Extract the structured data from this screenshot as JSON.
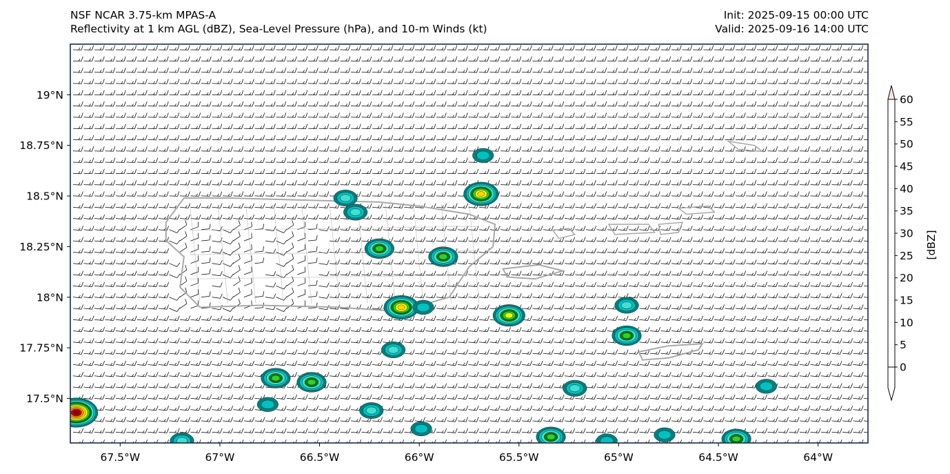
{
  "header": {
    "title_line1": "NSF NCAR 3.75-km MPAS-A",
    "title_line2": "Reflectivity at 1 km AGL (dBZ), Sea-Level Pressure (hPa), and 10-m Winds (kt)",
    "init": "Init: 2025-09-15 00:00 UTC",
    "valid": "Valid: 2025-09-16 14:00 UTC"
  },
  "map": {
    "lon_range": [
      -67.75,
      -63.75
    ],
    "lat_range": [
      17.28,
      19.25
    ],
    "lat_ticks": [
      {
        "value": 19.0,
        "label": "19°N"
      },
      {
        "value": 18.75,
        "label": "18.75°N"
      },
      {
        "value": 18.5,
        "label": "18.5°N"
      },
      {
        "value": 18.25,
        "label": "18.25°N"
      },
      {
        "value": 18.0,
        "label": "18°N"
      },
      {
        "value": 17.75,
        "label": "17.75°N"
      },
      {
        "value": 17.5,
        "label": "17.5°N"
      }
    ],
    "lon_ticks": [
      {
        "value": -67.5,
        "label": "67.5°W"
      },
      {
        "value": -67.0,
        "label": "67°W"
      },
      {
        "value": -66.5,
        "label": "66.5°W"
      },
      {
        "value": -66.0,
        "label": "66°W"
      },
      {
        "value": -65.5,
        "label": "65.5°W"
      },
      {
        "value": -65.0,
        "label": "65°W"
      },
      {
        "value": -64.5,
        "label": "64.5°W"
      },
      {
        "value": -64.0,
        "label": "64°W"
      }
    ],
    "coast_color": "#a8a8a8",
    "barb_color": "#000000",
    "wind_field": "easterly trade winds with light and variable flow over western Puerto Rico",
    "echoes": [
      {
        "lon": -67.72,
        "lat": 17.43,
        "max_dbz": 45
      },
      {
        "lon": -65.69,
        "lat": 18.51,
        "max_dbz": 30
      },
      {
        "lon": -65.68,
        "lat": 18.7,
        "max_dbz": 5
      },
      {
        "lon": -66.37,
        "lat": 18.49,
        "max_dbz": 10
      },
      {
        "lon": -66.32,
        "lat": 18.42,
        "max_dbz": 10
      },
      {
        "lon": -66.2,
        "lat": 18.24,
        "max_dbz": 20
      },
      {
        "lon": -65.88,
        "lat": 18.2,
        "max_dbz": 20
      },
      {
        "lon": -66.09,
        "lat": 17.95,
        "max_dbz": 30
      },
      {
        "lon": -65.98,
        "lat": 17.95,
        "max_dbz": 5
      },
      {
        "lon": -65.55,
        "lat": 17.91,
        "max_dbz": 25
      },
      {
        "lon": -64.96,
        "lat": 17.96,
        "max_dbz": 10
      },
      {
        "lon": -64.96,
        "lat": 17.81,
        "max_dbz": 20
      },
      {
        "lon": -66.13,
        "lat": 17.74,
        "max_dbz": 10
      },
      {
        "lon": -66.72,
        "lat": 17.6,
        "max_dbz": 20
      },
      {
        "lon": -66.54,
        "lat": 17.58,
        "max_dbz": 20
      },
      {
        "lon": -66.76,
        "lat": 17.47,
        "max_dbz": 5
      },
      {
        "lon": -66.24,
        "lat": 17.44,
        "max_dbz": 10
      },
      {
        "lon": -65.99,
        "lat": 17.35,
        "max_dbz": 5
      },
      {
        "lon": -65.34,
        "lat": 17.31,
        "max_dbz": 20
      },
      {
        "lon": -65.22,
        "lat": 17.55,
        "max_dbz": 10
      },
      {
        "lon": -64.26,
        "lat": 17.56,
        "max_dbz": 5
      },
      {
        "lon": -64.41,
        "lat": 17.3,
        "max_dbz": 20
      },
      {
        "lon": -64.77,
        "lat": 17.32,
        "max_dbz": 5
      },
      {
        "lon": -65.06,
        "lat": 17.29,
        "max_dbz": 5
      },
      {
        "lon": -67.19,
        "lat": 17.29,
        "max_dbz": 10
      }
    ]
  },
  "colorbar": {
    "label": "[dBZ]",
    "ticks": [
      "0",
      "5",
      "10",
      "15",
      "20",
      "25",
      "30",
      "35",
      "40",
      "45",
      "50",
      "55",
      "60"
    ],
    "colors": [
      "#008080",
      "#00c0c0",
      "#40e0d0",
      "#008000",
      "#32cd32",
      "#ffff00",
      "#ffd700",
      "#ff8c00",
      "#cc0000",
      "#8b0000",
      "#ff00ff",
      "#ffe4e1"
    ]
  }
}
